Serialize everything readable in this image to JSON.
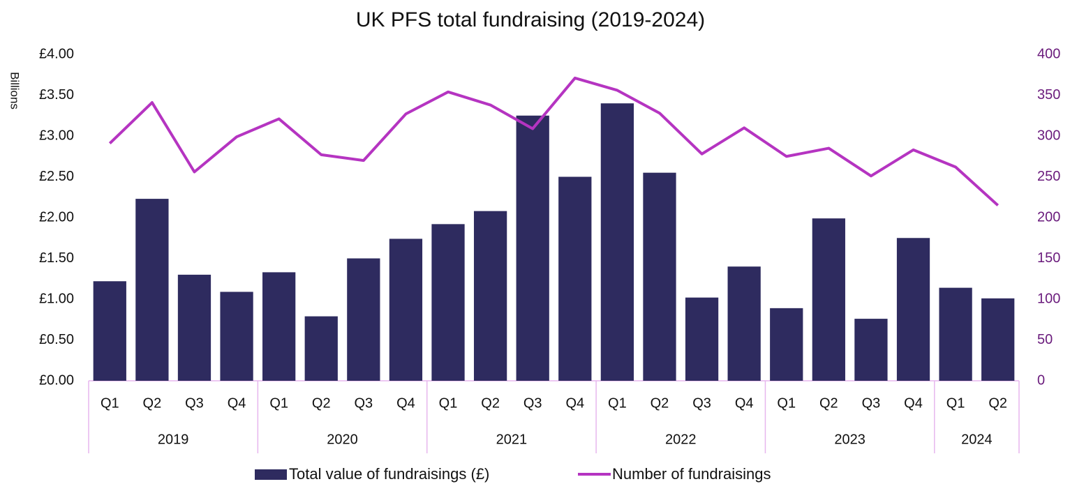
{
  "chart_data": {
    "type": "bar_line",
    "title": "UK PFS total fundraising (2019-2024)",
    "y_axis_label": "Billions",
    "groups": [
      {
        "label": "2019",
        "categories": [
          "Q1",
          "Q2",
          "Q3",
          "Q4"
        ]
      },
      {
        "label": "2020",
        "categories": [
          "Q1",
          "Q2",
          "Q3",
          "Q4"
        ]
      },
      {
        "label": "2021",
        "categories": [
          "Q1",
          "Q2",
          "Q3",
          "Q4"
        ]
      },
      {
        "label": "2022",
        "categories": [
          "Q1",
          "Q2",
          "Q3",
          "Q4"
        ]
      },
      {
        "label": "2023",
        "categories": [
          "Q1",
          "Q2",
          "Q3",
          "Q4"
        ]
      },
      {
        "label": "2024",
        "categories": [
          "Q1",
          "Q2"
        ]
      }
    ],
    "series": [
      {
        "name": "Total value of fundraisings (£)",
        "type": "bar",
        "color": "#2e2b5f",
        "values": [
          1.22,
          2.23,
          1.3,
          1.09,
          1.33,
          0.79,
          1.5,
          1.74,
          1.92,
          2.08,
          3.25,
          2.5,
          3.4,
          2.55,
          1.02,
          1.4,
          0.89,
          1.99,
          0.76,
          1.75,
          1.14,
          1.01
        ]
      },
      {
        "name": "Number of fundraisings",
        "type": "line",
        "axis": "y2",
        "color": "#b534c1",
        "values": [
          291,
          341,
          256,
          299,
          321,
          277,
          270,
          327,
          354,
          338,
          309,
          371,
          356,
          328,
          278,
          310,
          275,
          285,
          251,
          283,
          262,
          215
        ]
      }
    ],
    "ylim": [
      0,
      4
    ],
    "yticks": [
      {
        "value": 0,
        "label": "£0.00"
      },
      {
        "value": 0.5,
        "label": "£0.50"
      },
      {
        "value": 1,
        "label": "£1.00"
      },
      {
        "value": 1.5,
        "label": "£1.50"
      },
      {
        "value": 2,
        "label": "£2.00"
      },
      {
        "value": 2.5,
        "label": "£2.50"
      },
      {
        "value": 3,
        "label": "£3.00"
      },
      {
        "value": 3.5,
        "label": "£3.50"
      },
      {
        "value": 4,
        "label": "£4.00"
      }
    ],
    "y2lim": [
      0,
      400
    ],
    "y2ticks": [
      0,
      50,
      100,
      150,
      200,
      250,
      300,
      350,
      400
    ],
    "y2_color": "#6a1b7c",
    "axis_line_color": "#e7b6ee",
    "legend": "bottom"
  }
}
